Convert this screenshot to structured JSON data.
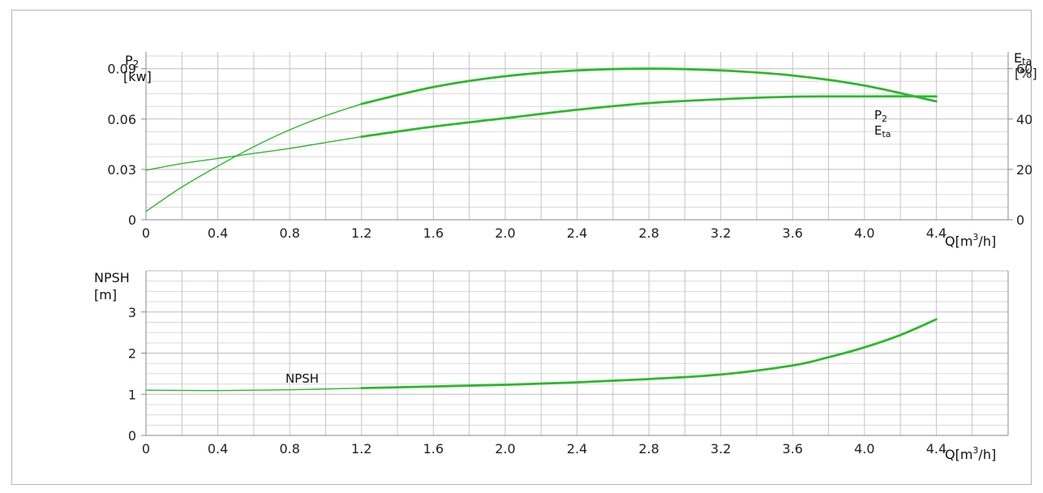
{
  "chart_data": [
    {
      "type": "line",
      "title": "",
      "x_unit_prefix": "Q[m",
      "x_unit_sup": "3",
      "x_unit_suffix": "/h]",
      "xlim": [
        0,
        4.8
      ],
      "x_ticks": [
        "0",
        "0.4",
        "0.8",
        "1.2",
        "1.6",
        "2.0",
        "2.4",
        "2.8",
        "3.2",
        "3.6",
        "4.0",
        "4.4"
      ],
      "x_tick_values": [
        0,
        0.4,
        0.8,
        1.2,
        1.6,
        2.0,
        2.4,
        2.8,
        3.2,
        3.6,
        4.0,
        4.4
      ],
      "left_axis": {
        "label_main": "P",
        "label_sub": "2",
        "unit": "[kw]",
        "ylim": [
          0,
          0.1
        ],
        "ticks": [
          "0",
          "0.03",
          "0.06",
          "0.09"
        ],
        "tick_values": [
          0,
          0.03,
          0.06,
          0.09
        ]
      },
      "right_axis": {
        "label_main": "E",
        "label_sub": "ta",
        "unit": "[%]",
        "ylim": [
          0,
          66.67
        ],
        "ticks": [
          "0",
          "20",
          "40",
          "60"
        ],
        "tick_values": [
          0,
          20,
          40,
          60
        ]
      },
      "grid": true,
      "series": [
        {
          "name_main": "P",
          "name_sub": "2",
          "axis": "left",
          "color": "#2db82d",
          "x": [
            0,
            0.2,
            0.4,
            0.6,
            0.8,
            1.0,
            1.2,
            1.6,
            2.0,
            2.4,
            2.8,
            3.2,
            3.6,
            4.0,
            4.4
          ],
          "y": [
            0.0295,
            0.0335,
            0.0365,
            0.0395,
            0.0425,
            0.046,
            0.0495,
            0.0555,
            0.0605,
            0.0655,
            0.0695,
            0.0718,
            0.0733,
            0.0735,
            0.0735
          ]
        },
        {
          "name_main": "E",
          "name_sub": "ta",
          "axis": "right",
          "color": "#2db82d",
          "x": [
            0,
            0.2,
            0.4,
            0.6,
            0.8,
            1.0,
            1.2,
            1.6,
            2.0,
            2.4,
            2.8,
            3.2,
            3.6,
            4.0,
            4.4
          ],
          "y": [
            3.3,
            13,
            21.3,
            29,
            35.7,
            41.3,
            46,
            52.7,
            57,
            59.3,
            60,
            59.3,
            57.3,
            53.3,
            47
          ]
        }
      ]
    },
    {
      "type": "line",
      "title": "",
      "x_unit_prefix": "Q[m",
      "x_unit_sup": "3",
      "x_unit_suffix": "/h]",
      "xlim": [
        0,
        4.8
      ],
      "x_ticks": [
        "0",
        "0.4",
        "0.8",
        "1.2",
        "1.6",
        "2.0",
        "2.4",
        "2.8",
        "3.2",
        "3.6",
        "4.0",
        "4.4"
      ],
      "x_tick_values": [
        0,
        0.4,
        0.8,
        1.2,
        1.6,
        2.0,
        2.4,
        2.8,
        3.2,
        3.6,
        4.0,
        4.4
      ],
      "left_axis": {
        "label_main": "NPSH",
        "unit": "[m]",
        "ylim": [
          0,
          4
        ],
        "ticks": [
          "0",
          "1",
          "2",
          "3"
        ],
        "tick_values": [
          0,
          1,
          2,
          3
        ]
      },
      "grid": true,
      "series": [
        {
          "name": "NPSH",
          "color": "#2db82d",
          "x": [
            0,
            0.4,
            0.8,
            1.2,
            1.6,
            2.0,
            2.4,
            2.8,
            3.2,
            3.6,
            3.8,
            4.0,
            4.2,
            4.4
          ],
          "y": [
            1.1,
            1.09,
            1.11,
            1.15,
            1.19,
            1.23,
            1.29,
            1.37,
            1.48,
            1.7,
            1.9,
            2.14,
            2.44,
            2.82
          ]
        }
      ]
    }
  ]
}
